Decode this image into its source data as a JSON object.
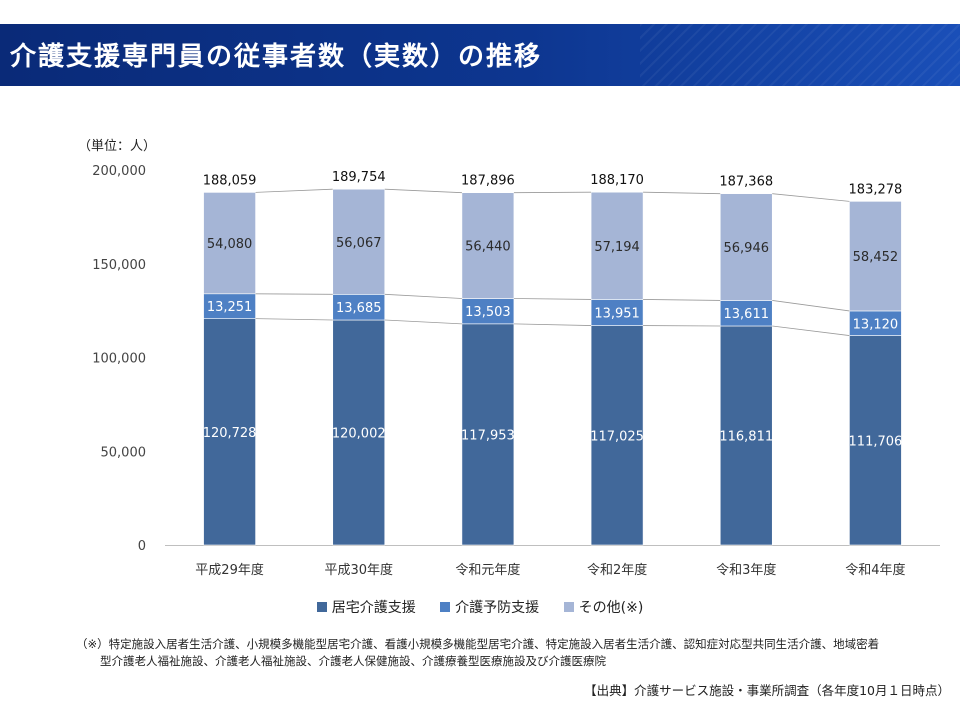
{
  "page": {
    "title": "介護支援専門員の従事者数（実数）の推移",
    "unit_label": "（単位：人）",
    "footnote_line1": "（※）特定施設入居者生活介護、小規模多機能型居宅介護、看護小規模多機能型居宅介護、特定施設入居者生活介護、認知症対応型共同生活介護、地域密着",
    "footnote_line2": "型介護老人福祉施設、介護老人福祉施設、介護老人保健施設、介護療養型医療施設及び介護医療院",
    "source": "【出典】介護サービス施設・事業所調査（各年度10月１日時点）"
  },
  "chart_data": {
    "type": "bar",
    "stacked": true,
    "title": "介護支援専門員の従事者数（実数）の推移",
    "ylabel": "（単位：人）",
    "xlabel": "",
    "ylim": [
      0,
      200000
    ],
    "yticks": [
      0,
      50000,
      100000,
      150000,
      200000
    ],
    "ytick_labels": [
      "0",
      "50,000",
      "100,000",
      "150,000",
      "200,000"
    ],
    "categories": [
      "平成29年度",
      "平成30年度",
      "令和元年度",
      "令和2年度",
      "令和3年度",
      "令和4年度"
    ],
    "series": [
      {
        "name": "居宅介護支援",
        "color": "#41689a",
        "label_color": "#ffffff",
        "values": [
          120728,
          120002,
          117953,
          117025,
          116811,
          111706
        ],
        "labels": [
          "120,728",
          "120,002",
          "117,953",
          "117,025",
          "116,811",
          "111,706"
        ]
      },
      {
        "name": "介護予防支援",
        "color": "#4e80c4",
        "label_color": "#ffffff",
        "values": [
          13251,
          13685,
          13503,
          13951,
          13611,
          13120
        ],
        "labels": [
          "13,251",
          "13,685",
          "13,503",
          "13,951",
          "13,611",
          "13,120"
        ]
      },
      {
        "name": "その他(※)",
        "color": "#a5b5d6",
        "label_color": "#2b2b2b",
        "values": [
          54080,
          56067,
          56440,
          57194,
          56946,
          58452
        ],
        "labels": [
          "54,080",
          "56,067",
          "56,440",
          "57,194",
          "56,946",
          "58,452"
        ]
      }
    ],
    "totals": [
      188059,
      189754,
      187896,
      188170,
      187368,
      183278
    ],
    "total_labels": [
      "188,059",
      "189,754",
      "187,896",
      "188,170",
      "187,368",
      "183,278"
    ],
    "legend_position": "bottom",
    "grid": false,
    "series_lines": true
  }
}
